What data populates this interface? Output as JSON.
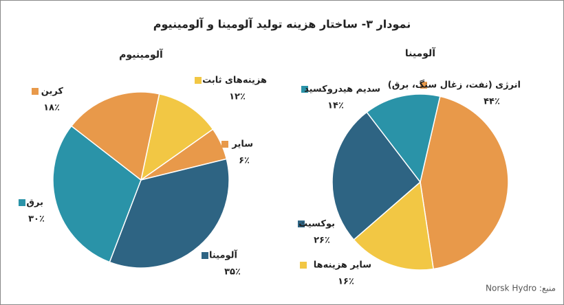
{
  "title": "نمودار ۳- ساختار هزینه تولید آلومینا و آلومینیوم",
  "source": "منبع: Norsk Hydro",
  "chart_data": [
    {
      "type": "pie",
      "title": "آلومینیوم",
      "categories": [
        "هزینه‌های ثابت",
        "سایر",
        "آلومینا",
        "برق",
        "کربن"
      ],
      "values": [
        12,
        6,
        35,
        30,
        18
      ],
      "value_labels": [
        "۱۲٪",
        "۶٪",
        "۳۵٪",
        "۳۰٪",
        "۱۸٪"
      ],
      "colors": [
        "#f2c744",
        "#e8994a",
        "#2e6483",
        "#2a93a8",
        "#e8994a"
      ]
    },
    {
      "type": "pie",
      "title": "آلومینا",
      "categories": [
        "انرژی (نفت، زغال سنگ، برق)",
        "سایر هزینه‌ها",
        "بوکسیت",
        "سدیم هیدروکسید"
      ],
      "values": [
        44,
        16,
        26,
        14
      ],
      "value_labels": [
        "۴۴٪",
        "۱۶٪",
        "۲۶٪",
        "۱۴٪"
      ],
      "colors": [
        "#e8994a",
        "#f2c744",
        "#2e6483",
        "#2a93a8"
      ]
    }
  ]
}
